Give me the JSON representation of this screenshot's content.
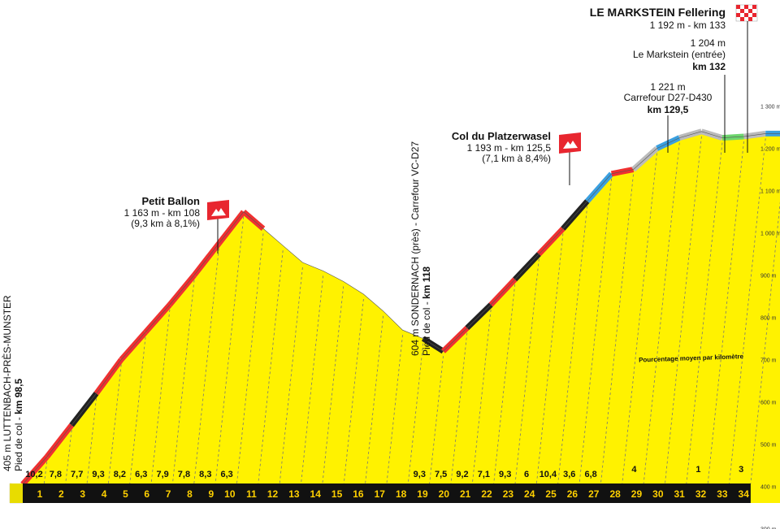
{
  "chart_data": {
    "type": "area",
    "x_unit": "km",
    "xlim": [
      0,
      34
    ],
    "ylim": [
      300,
      1300
    ],
    "y_ticks": [
      "300 m",
      "400 m",
      "500 m",
      "600 m",
      "700 m",
      "800 m",
      "900 m",
      "1 000 m",
      "1 100 m",
      "1 200 m",
      "1 300 m"
    ],
    "km_labels": [
      "1",
      "2",
      "3",
      "4",
      "5",
      "6",
      "7",
      "8",
      "9",
      "10",
      "11",
      "12",
      "13",
      "14",
      "15",
      "16",
      "17",
      "18",
      "19",
      "20",
      "21",
      "22",
      "23",
      "24",
      "25",
      "26",
      "27",
      "28",
      "29",
      "30",
      "31",
      "32",
      "33",
      "34"
    ],
    "profile": [
      {
        "km": 0,
        "alt": 405
      },
      {
        "km": 1,
        "alt": 470
      },
      {
        "km": 2,
        "alt": 545
      },
      {
        "km": 3,
        "alt": 620
      },
      {
        "km": 4,
        "alt": 700
      },
      {
        "km": 5,
        "alt": 765
      },
      {
        "km": 6,
        "alt": 830
      },
      {
        "km": 7,
        "alt": 900
      },
      {
        "km": 8,
        "alt": 975
      },
      {
        "km": 9,
        "alt": 1050
      },
      {
        "km": 10,
        "alt": 1010
      },
      {
        "km": 11,
        "alt": 970
      },
      {
        "km": 12,
        "alt": 930
      },
      {
        "km": 13,
        "alt": 910
      },
      {
        "km": 14,
        "alt": 885
      },
      {
        "km": 15,
        "alt": 855
      },
      {
        "km": 16,
        "alt": 815
      },
      {
        "km": 17,
        "alt": 770
      },
      {
        "km": 18,
        "alt": 750
      },
      {
        "km": 19,
        "alt": 720
      },
      {
        "km": 20,
        "alt": 775
      },
      {
        "km": 21,
        "alt": 830
      },
      {
        "km": 22,
        "alt": 890
      },
      {
        "km": 23,
        "alt": 950
      },
      {
        "km": 24,
        "alt": 1010
      },
      {
        "km": 25,
        "alt": 1075
      },
      {
        "km": 26,
        "alt": 1140
      },
      {
        "km": 27,
        "alt": 1150
      },
      {
        "km": 28,
        "alt": 1200
      },
      {
        "km": 29,
        "alt": 1225
      },
      {
        "km": 30,
        "alt": 1240
      },
      {
        "km": 31,
        "alt": 1225
      },
      {
        "km": 32,
        "alt": 1228
      },
      {
        "km": 33,
        "alt": 1235
      },
      {
        "km": 34,
        "alt": 1235
      }
    ],
    "segment_gradients": [
      "10,2",
      "7,8",
      "7,7",
      "9,3",
      "8,2",
      "6,3",
      "7,9",
      "7,8",
      "8,3",
      "6,3",
      "",
      "",
      "",
      "",
      "",
      "",
      "",
      "",
      "9,3",
      "7,5",
      "9,2",
      "7,1",
      "9,3",
      "6",
      "10,4",
      "3,6",
      "6,8",
      "",
      "4",
      "",
      "",
      "1",
      "",
      "3"
    ],
    "grad_label_pos": [
      "low",
      "low",
      "low",
      "low",
      "low",
      "low",
      "low",
      "low",
      "low",
      "low",
      "low",
      "low",
      "low",
      "low",
      "low",
      "low",
      "low",
      "low",
      "low",
      "low",
      "low",
      "low",
      "low",
      "low",
      "low",
      "low",
      "low",
      "low",
      "high",
      "high",
      "high",
      "high",
      "high",
      "high"
    ],
    "climb_colors": [
      "#f03030",
      "#f03030",
      "#222222",
      "#f03030",
      "#f03030",
      "#f03030",
      "#f03030",
      "#f03030",
      "#f03030",
      "#f03030",
      null,
      null,
      null,
      null,
      null,
      null,
      null,
      null,
      "#222222",
      "#f03030",
      "#222222",
      "#f03030",
      "#222222",
      "#f03030",
      "#222222",
      "#3aa0e0",
      "#f03030",
      "#bbbbbb",
      "#3aa0e0",
      "#bbbbbb",
      "#bbbbbb",
      "#6ed66e",
      "#bbbbbb",
      "#3aa0e0"
    ],
    "annotations": {
      "finish": {
        "name": "LE MARKSTEIN Fellering",
        "details": "1 192 m - km 133"
      },
      "entree": {
        "alt": "1 204 m",
        "name": "Le Markstein (entrée)",
        "km": "km 132"
      },
      "carrefour2": {
        "alt": "1 221 m",
        "name": "Carrefour D27-D430",
        "km": "km 129,5"
      },
      "platzerwasel": {
        "name": "Col du Platzerwasel",
        "line1": "1 193 m - km 125,5",
        "line2": "(7,1 km à 8,4%)"
      },
      "petit_ballon": {
        "name": "Petit Ballon",
        "line1": "1 163 m - km 108",
        "line2": "(9,3 km à 8,1%)"
      },
      "sondernach": {
        "line1": "604 m SONDERNACH (près) - Carrefour VC-D27",
        "line2_prefix": "Pied de col - ",
        "line2_km": "km 118"
      },
      "start": {
        "line1": "405 m LUTTENBACH-PRÈS-MUNSTER",
        "line2_prefix": "Pied de col - ",
        "line2_km": "km 98,5"
      },
      "legend_note": "Pourcentage moyen par kilomètre"
    },
    "colors": {
      "fill": "#fff200",
      "shade": "#e8dc00",
      "base_bar": "#111111",
      "flag_red": "#e8262f",
      "axis_number": "#ffd000"
    }
  }
}
